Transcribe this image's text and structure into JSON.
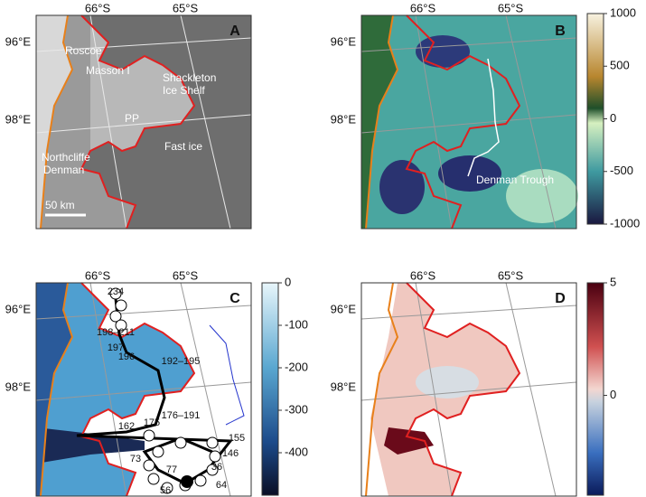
{
  "panels": [
    {
      "letter": "A",
      "lat_labels": [
        "66°S",
        "65°S"
      ],
      "lon_labels": [
        "96°E",
        "98°E"
      ],
      "labels": [
        "Roscoe",
        "Masson I",
        "Shackleton",
        "Ice Shelf",
        "PP",
        "Fast ice",
        "Northcliffe",
        "Denman"
      ],
      "scale_bar": "50 km"
    },
    {
      "letter": "B",
      "lat_labels": [
        "66°S",
        "65°S"
      ],
      "lon_labels": [
        "96°E",
        "98°E"
      ],
      "labels": [
        "Denman Trough"
      ],
      "colorbar_ticks": [
        "1000",
        "500",
        "0",
        "-500",
        "-1000"
      ]
    },
    {
      "letter": "C",
      "lat_labels": [
        "66°S",
        "65°S"
      ],
      "lon_labels": [
        "96°E",
        "98°E"
      ],
      "station_labels": [
        "234",
        "198–211",
        "197",
        "196",
        "192–195",
        "176–191",
        "162",
        "175",
        "155",
        "146",
        "73",
        "77",
        "36",
        "64",
        "56"
      ],
      "colorbar_ticks": [
        "0",
        "-100",
        "-200",
        "-300",
        "-400"
      ]
    },
    {
      "letter": "D",
      "lat_labels": [
        "66°S",
        "65°S"
      ],
      "lon_labels": [
        "96°E",
        "98°E"
      ],
      "colorbar_ticks": [
        "5",
        "0"
      ]
    }
  ]
}
